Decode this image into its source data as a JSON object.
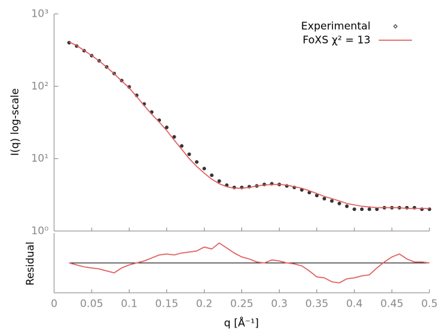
{
  "chart_data": [
    {
      "type": "line",
      "y_label": "I(q) log-scale",
      "ylog": true,
      "xlim": [
        0,
        0.5
      ],
      "ylim": [
        1,
        1000
      ],
      "yticks": [
        {
          "value": 1,
          "label": "10⁰"
        },
        {
          "value": 10,
          "label": "10¹"
        },
        {
          "value": 100,
          "label": "10²"
        },
        {
          "value": 1000,
          "label": "10³"
        }
      ],
      "legend": "top right",
      "x": [
        0.02,
        0.03,
        0.04,
        0.05,
        0.06,
        0.07,
        0.08,
        0.09,
        0.1,
        0.11,
        0.12,
        0.13,
        0.14,
        0.15,
        0.16,
        0.17,
        0.18,
        0.19,
        0.2,
        0.21,
        0.22,
        0.23,
        0.24,
        0.25,
        0.26,
        0.27,
        0.28,
        0.29,
        0.3,
        0.31,
        0.32,
        0.33,
        0.34,
        0.35,
        0.36,
        0.37,
        0.38,
        0.39,
        0.4,
        0.41,
        0.42,
        0.43,
        0.44,
        0.45,
        0.46,
        0.47,
        0.48,
        0.49,
        0.5
      ],
      "series": [
        {
          "name": "Experimental",
          "color": "#333333",
          "marker": "points",
          "values": [
            400,
            360,
            310,
            265,
            225,
            185,
            150,
            120,
            98,
            75,
            57,
            44,
            34,
            27,
            20,
            15,
            11.5,
            9,
            7.3,
            5.9,
            4.9,
            4.3,
            4.0,
            4.0,
            4.1,
            4.2,
            4.4,
            4.5,
            4.4,
            4.2,
            4.0,
            3.7,
            3.4,
            3.1,
            2.8,
            2.6,
            2.4,
            2.2,
            2.0,
            2.0,
            2.0,
            2.0,
            2.1,
            2.1,
            2.1,
            2.1,
            2.1,
            2.0,
            2.0
          ]
        },
        {
          "name": "FoXS χ² = 13",
          "color": "#e05a5a",
          "marker": "line",
          "values": [
            410,
            365,
            312,
            266,
            224,
            184,
            149,
            118,
            95,
            72,
            54,
            41,
            32,
            24.5,
            18,
            13.5,
            10,
            7.8,
            6.3,
            5.2,
            4.5,
            4.1,
            3.9,
            3.9,
            4.0,
            4.2,
            4.3,
            4.4,
            4.4,
            4.3,
            4.1,
            3.9,
            3.6,
            3.3,
            3.0,
            2.8,
            2.6,
            2.4,
            2.3,
            2.2,
            2.15,
            2.1,
            2.1,
            2.1,
            2.1,
            2.05,
            2.05,
            2.05,
            2.05
          ]
        }
      ]
    },
    {
      "type": "line",
      "y_label": "Residual",
      "x_label": "q [Å⁻¹]",
      "xlim": [
        0,
        0.5
      ],
      "ylim": [
        -3,
        3
      ],
      "hline": 0,
      "xticks": [
        0,
        0.05,
        0.1,
        0.15,
        0.2,
        0.25,
        0.3,
        0.35,
        0.4,
        0.45,
        0.5
      ],
      "x": [
        0.02,
        0.03,
        0.04,
        0.05,
        0.06,
        0.07,
        0.08,
        0.09,
        0.1,
        0.11,
        0.12,
        0.13,
        0.14,
        0.15,
        0.16,
        0.17,
        0.18,
        0.19,
        0.2,
        0.21,
        0.22,
        0.23,
        0.24,
        0.25,
        0.26,
        0.27,
        0.28,
        0.29,
        0.3,
        0.31,
        0.32,
        0.33,
        0.34,
        0.35,
        0.36,
        0.37,
        0.38,
        0.39,
        0.4,
        0.41,
        0.42,
        0.43,
        0.44,
        0.45,
        0.46,
        0.47,
        0.48,
        0.49,
        0.5
      ],
      "series": [
        {
          "color": "#e05a5a",
          "values": [
            0,
            -0.2,
            -0.4,
            -0.5,
            -0.6,
            -0.8,
            -1.0,
            -0.5,
            -0.2,
            0,
            0.2,
            0.5,
            0.8,
            0.9,
            0.8,
            1.0,
            1.1,
            1.2,
            1.6,
            1.4,
            2.0,
            1.5,
            1.0,
            0.6,
            0.4,
            0.1,
            0,
            0.3,
            0.2,
            0,
            -0.1,
            -0.3,
            -0.8,
            -1.4,
            -1.5,
            -1.9,
            -2.0,
            -1.6,
            -1.5,
            -1.3,
            -1.2,
            -0.5,
            0.1,
            0.6,
            0.9,
            0.4,
            0.1,
            0.1,
            0
          ]
        }
      ]
    }
  ]
}
